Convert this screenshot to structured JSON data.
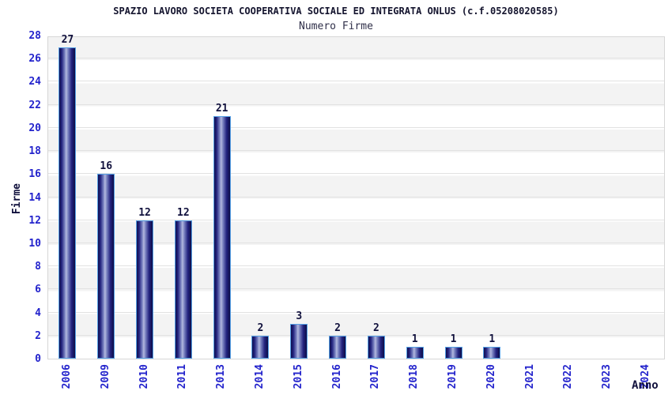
{
  "header": {
    "title": "SPAZIO LAVORO SOCIETA COOPERATIVA SOCIALE ED INTEGRATA ONLUS (c.f.05208020585)",
    "subtitle": "Numero Firme"
  },
  "chart_data": {
    "type": "bar",
    "title": "SPAZIO LAVORO SOCIETA COOPERATIVA SOCIALE ED INTEGRATA ONLUS (c.f.05208020585)",
    "subtitle": "Numero Firme",
    "xlabel": "Anno",
    "ylabel": "Firme",
    "categories": [
      "2006",
      "2009",
      "2010",
      "2011",
      "2013",
      "2014",
      "2015",
      "2016",
      "2017",
      "2018",
      "2019",
      "2020",
      "2021",
      "2022",
      "2023",
      "2024"
    ],
    "values": [
      27,
      16,
      12,
      12,
      21,
      2,
      3,
      2,
      2,
      1,
      1,
      1,
      0,
      0,
      0,
      0
    ],
    "ylim": [
      0,
      28
    ],
    "y_ticks": [
      0,
      2,
      4,
      6,
      8,
      10,
      12,
      14,
      16,
      18,
      20,
      22,
      24,
      26,
      28
    ],
    "grid": "horizontal gridlines with alternating gray/white bands",
    "legend": "none",
    "colors": {
      "bar_fill_dark": "#10104f",
      "bar_fill_highlight": "#b3b9de",
      "bar_border": "#55a0e6",
      "tick_label": "#2323cc",
      "value_label": "#10103c",
      "title": "#14142e",
      "band_gray": "#f3f3f3",
      "gridline": "#e2e2e2",
      "plot_border": "#d6d6d6"
    }
  }
}
